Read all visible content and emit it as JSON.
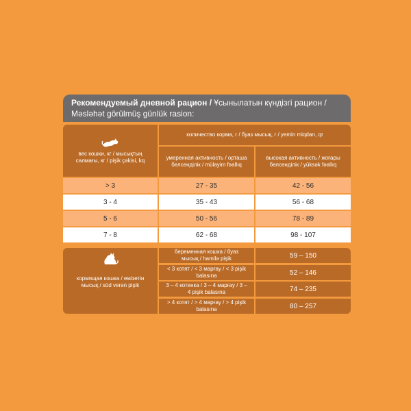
{
  "header": {
    "title_bold": "Рекомендуемый дневной рацион /",
    "title_rest": " Ұсынылатын күндізгі рацион /",
    "title_line2": "Məsləhət görülmüş günlük rasion:"
  },
  "table1": {
    "weight_header": "вес кошки, кг / мысықтың салмағы, кг / pişik çəkisi, kq",
    "food_header": "количество корма, г / буаз мысық, г / yemin miqdarı, qr",
    "moderate_header": "умеренная активность / орташа белсенділік / mülayim fəallıq",
    "high_header": "высокая активность / жоғары белсенділік / yüksək fəallıq",
    "rows": [
      {
        "weight": "> 3",
        "moderate": "27 - 35",
        "high": "42 - 56"
      },
      {
        "weight": "3 - 4",
        "moderate": "35 - 43",
        "high": "56 - 68"
      },
      {
        "weight": "5 - 6",
        "moderate": "50 - 56",
        "high": "78 - 89"
      },
      {
        "weight": "7 - 8",
        "moderate": "62 - 68",
        "high": "98 - 107"
      }
    ]
  },
  "table2": {
    "label": "кормящая кошка / емізетін мысық / süd verən pişik",
    "rows": [
      {
        "desc": "беременная кошка / буаз мысық / hamilə pişik",
        "value": "59 – 150"
      },
      {
        "desc": "< 3 котят / < 3 марғау / < 3 pişik balasına",
        "value": "52 – 146"
      },
      {
        "desc": "3 – 4 котенка / 3 – 4 марғау / 3 – 4 pişik balasına",
        "value": "74 – 235"
      },
      {
        "desc": "> 4 котят / > 4 марғау / > 4 pişik balasına",
        "value": "80 – 257"
      }
    ]
  },
  "colors": {
    "background": "#f49a3e",
    "header": "#6d6b6c",
    "brown": "#b96a27",
    "light_row": "#fbb37a",
    "white_row": "#ffffff"
  },
  "icons": [
    "cat-icon",
    "nursing-cat-icon"
  ]
}
